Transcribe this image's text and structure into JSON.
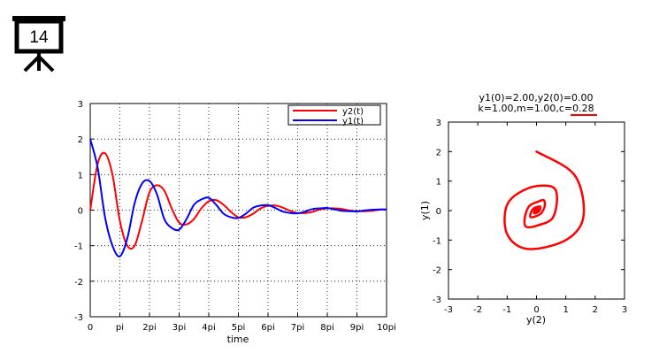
{
  "slide": {
    "number": "14",
    "icon": "presentation-board-icon"
  },
  "chart_data": [
    {
      "type": "line",
      "title": "",
      "xlabel": "time",
      "ylabel": "",
      "xlim": [
        0,
        10
      ],
      "ylim": [
        -3,
        3
      ],
      "x_unit": "pi",
      "xticks": [
        0,
        1,
        2,
        3,
        4,
        5,
        6,
        7,
        8,
        9,
        10
      ],
      "xtick_labels": [
        "0",
        "pi",
        "2pi",
        "3pi",
        "4pi",
        "5pi",
        "6pi",
        "7pi",
        "8pi",
        "9pi",
        "10pi"
      ],
      "yticks": [
        -3,
        -2,
        -1,
        0,
        1,
        2,
        3
      ],
      "ytick_labels": [
        "-3",
        "-2",
        "-1",
        "0",
        "1",
        "2",
        "3"
      ],
      "grid": true,
      "legend_position": "top-right",
      "parameters": {
        "y1_0": 2.0,
        "y2_0": 0.0,
        "k": 1.0,
        "m": 1.0,
        "c": 0.28
      },
      "series": [
        {
          "name": "y2(t)",
          "color": "#ff0000",
          "x": [
            0,
            0.25,
            0.5,
            0.75,
            1.0,
            1.25,
            1.5,
            1.75,
            2.0,
            2.25,
            2.5,
            2.75,
            3.0,
            3.25,
            3.5,
            3.75,
            4.0,
            4.25,
            4.5,
            4.75,
            5.0,
            5.25,
            5.5,
            5.75,
            6.0,
            6.25,
            6.5,
            6.75,
            7.0,
            7.25,
            7.5,
            7.75,
            8.0,
            8.25,
            8.5,
            8.75,
            9.0,
            9.25,
            9.5,
            9.75,
            10.0
          ],
          "values": [
            0,
            1.3,
            1.6,
            1.0,
            -0.3,
            -1.0,
            -1.0,
            -0.3,
            0.5,
            0.7,
            0.55,
            0.05,
            -0.35,
            -0.4,
            -0.25,
            0.05,
            0.25,
            0.28,
            0.15,
            -0.05,
            -0.2,
            -0.2,
            -0.1,
            0.05,
            0.12,
            0.13,
            0.07,
            -0.02,
            -0.08,
            -0.08,
            -0.05,
            0.02,
            0.05,
            0.05,
            0.03,
            -0.01,
            -0.03,
            -0.03,
            -0.02,
            0.01,
            0.02
          ]
        },
        {
          "name": "y1(t)",
          "color": "#0000ff",
          "x": [
            0,
            0.25,
            0.5,
            0.75,
            1.0,
            1.25,
            1.5,
            1.75,
            2.0,
            2.25,
            2.5,
            2.75,
            3.0,
            3.25,
            3.5,
            3.75,
            4.0,
            4.25,
            4.5,
            4.75,
            5.0,
            5.25,
            5.5,
            5.75,
            6.0,
            6.25,
            6.5,
            6.75,
            7.0,
            7.25,
            7.5,
            7.75,
            8.0,
            8.25,
            8.5,
            8.75,
            9.0,
            9.25,
            9.5,
            9.75,
            10.0
          ],
          "values": [
            2.0,
            1.2,
            -0.2,
            -1.0,
            -1.3,
            -0.8,
            0.2,
            0.75,
            0.82,
            0.45,
            -0.25,
            -0.5,
            -0.55,
            -0.25,
            0.15,
            0.3,
            0.35,
            0.15,
            -0.1,
            -0.2,
            -0.22,
            -0.1,
            0.07,
            0.13,
            0.14,
            0.06,
            -0.04,
            -0.08,
            -0.09,
            -0.04,
            0.03,
            0.05,
            0.06,
            0.02,
            -0.02,
            -0.03,
            -0.035,
            -0.01,
            0.01,
            0.02,
            0.02
          ]
        }
      ]
    },
    {
      "type": "line",
      "title": "y1(0)=2.00,y2(0)=0.00",
      "subtitle": "k=1.00,m=1.00,c=0.28",
      "highlighted_text": "c=0.28",
      "highlight_color": "#ff0000",
      "xlabel": "y(2)",
      "ylabel": "y(1)",
      "xlim": [
        -3,
        3
      ],
      "ylim": [
        -3,
        3
      ],
      "xticks": [
        -3,
        -2,
        -1,
        0,
        1,
        2,
        3
      ],
      "xtick_labels": [
        "-3",
        "-2",
        "-1",
        "0",
        "1",
        "2",
        "3"
      ],
      "yticks": [
        -3,
        -2,
        -1,
        0,
        1,
        2,
        3
      ],
      "ytick_labels": [
        "-3",
        "-2",
        "-1",
        "0",
        "1",
        "2",
        "3"
      ],
      "grid": false,
      "series": [
        {
          "color": "#ff0000",
          "x": [
            0,
            1.3,
            1.6,
            1.0,
            -0.3,
            -1.0,
            -1.0,
            -0.3,
            0.5,
            0.7,
            0.55,
            0.05,
            -0.35,
            -0.4,
            -0.25,
            0.05,
            0.25,
            0.28,
            0.15,
            -0.05,
            -0.2,
            -0.2,
            -0.1,
            0.05,
            0.12,
            0.13,
            0.07,
            -0.02,
            -0.08,
            -0.08,
            -0.05,
            0.02,
            0.05,
            0.05,
            0.03,
            -0.01,
            -0.03,
            -0.03,
            -0.02,
            0.01,
            0.02
          ],
          "values": [
            2.0,
            1.2,
            -0.2,
            -1.0,
            -1.3,
            -0.8,
            0.2,
            0.75,
            0.82,
            0.45,
            -0.25,
            -0.5,
            -0.55,
            -0.25,
            0.15,
            0.3,
            0.35,
            0.15,
            -0.1,
            -0.2,
            -0.22,
            -0.1,
            0.07,
            0.13,
            0.14,
            0.06,
            -0.04,
            -0.08,
            -0.09,
            -0.04,
            0.03,
            0.05,
            0.06,
            0.02,
            -0.02,
            -0.03,
            -0.035,
            -0.01,
            0.01,
            0.02,
            0.02
          ]
        }
      ]
    }
  ]
}
